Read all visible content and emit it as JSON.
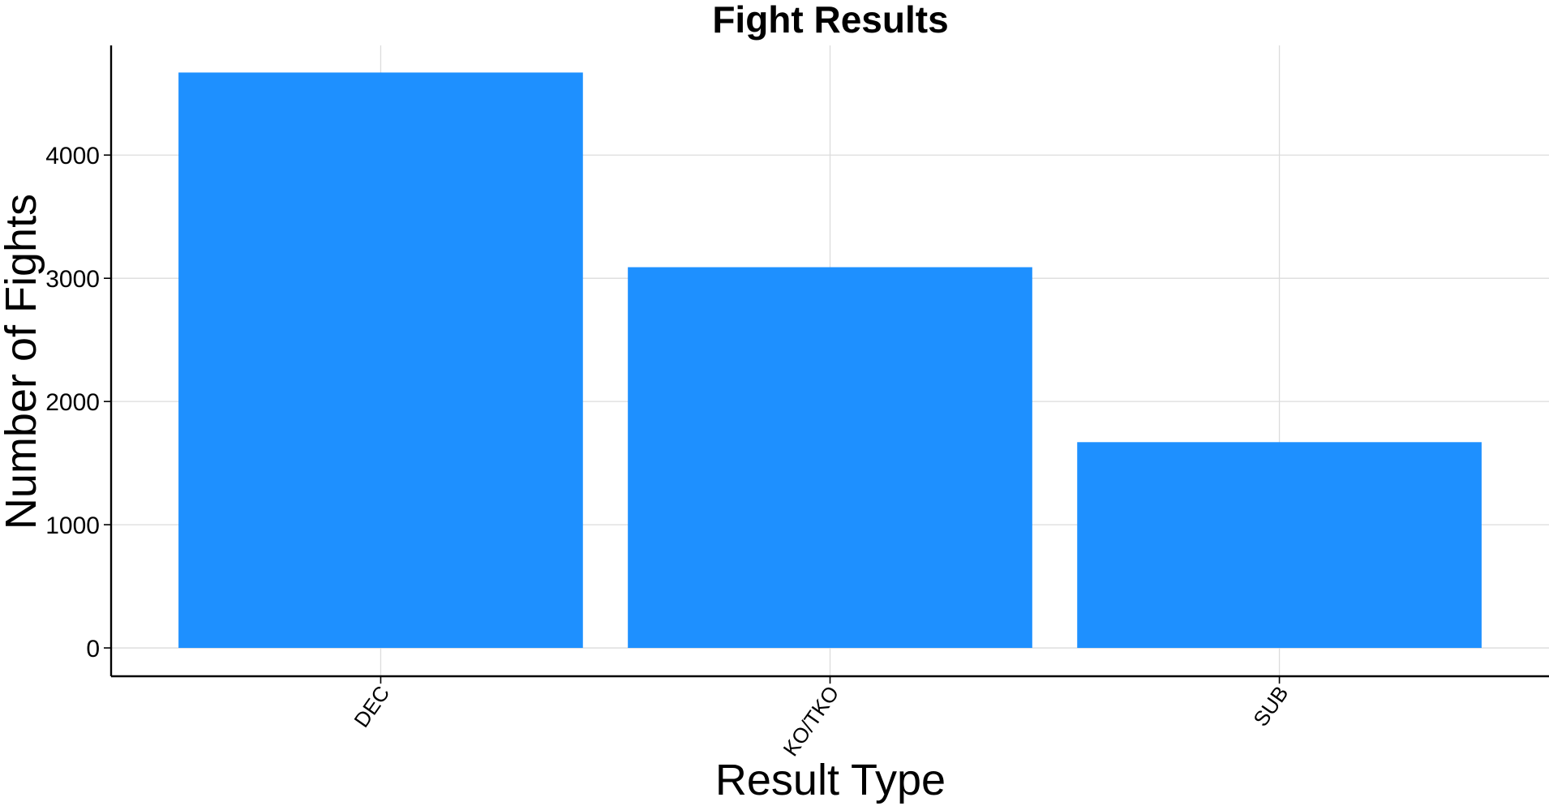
{
  "chart_data": {
    "type": "bar",
    "title": "Fight Results",
    "xlabel": "Result Type",
    "ylabel": "Number of Fights",
    "categories": [
      "DEC",
      "KO/TKO",
      "SUB"
    ],
    "values": [
      4670,
      3090,
      1670
    ],
    "ylim": [
      -230,
      4890
    ],
    "yticks": [
      0,
      1000,
      2000,
      3000,
      4000
    ],
    "ytick_labels": [
      "0",
      "1000",
      "2000",
      "3000",
      "4000"
    ],
    "grid": true,
    "legend": "none",
    "bar_color": "#1e90ff"
  }
}
